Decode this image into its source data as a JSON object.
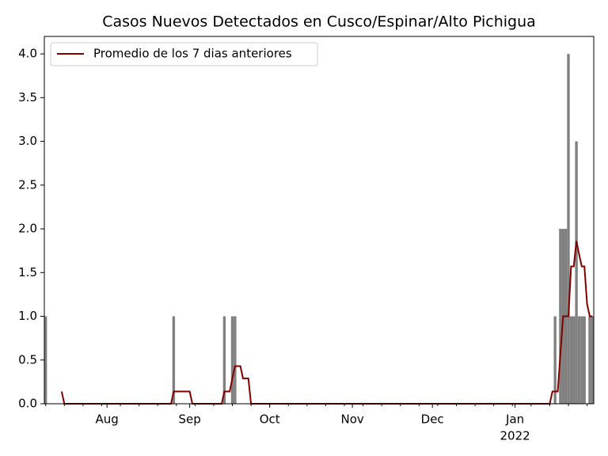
{
  "chart_data": {
    "type": "bar",
    "title": "Casos Nuevos Detectados en Cusco/Espinar/Alto Pichigua",
    "categories": [
      null,
      null,
      null,
      null,
      null,
      null,
      null,
      null,
      null,
      null,
      null,
      null,
      null,
      null,
      null,
      null,
      null,
      null,
      null,
      null,
      null,
      null,
      null,
      "Aug",
      null,
      null,
      null,
      null,
      null,
      null,
      null,
      null,
      null,
      null,
      null,
      null,
      null,
      null,
      null,
      null,
      null,
      null,
      null,
      null,
      null,
      null,
      null,
      null,
      null,
      null,
      null,
      null,
      null,
      null,
      "Sep",
      null,
      null,
      null,
      null,
      null,
      null,
      null,
      null,
      null,
      null,
      null,
      null,
      null,
      null,
      null,
      null,
      null,
      null,
      null,
      null,
      null,
      null,
      null,
      null,
      null,
      null,
      null,
      null,
      null,
      "Oct",
      null,
      null,
      null,
      null,
      null,
      null,
      null,
      null,
      null,
      null,
      null,
      null,
      null,
      null,
      null,
      null,
      null,
      null,
      null,
      null,
      null,
      null,
      null,
      null,
      null,
      null,
      null,
      null,
      null,
      null,
      "Nov",
      null,
      null,
      null,
      null,
      null,
      null,
      null,
      null,
      null,
      null,
      null,
      null,
      null,
      null,
      null,
      null,
      null,
      null,
      null,
      null,
      null,
      null,
      null,
      null,
      null,
      null,
      null,
      null,
      null,
      "Dec",
      null,
      null,
      null,
      null,
      null,
      null,
      null,
      null,
      null,
      null,
      null,
      null,
      null,
      null,
      null,
      null,
      null,
      null,
      null,
      null,
      null,
      null,
      null,
      null,
      null,
      null,
      null,
      null,
      null,
      null,
      "Jan",
      null,
      null,
      null,
      null,
      null,
      null,
      null,
      null,
      null,
      null,
      null,
      null,
      null,
      null,
      null,
      null,
      null,
      null,
      null,
      null,
      null,
      null,
      null,
      null,
      null,
      null,
      null,
      null,
      null
    ],
    "x_year_label": "2022",
    "series": [
      {
        "type": "bar",
        "color": "#808080",
        "values": [
          1,
          0,
          0,
          0,
          0,
          0,
          0,
          0,
          0,
          0,
          0,
          0,
          0,
          0,
          0,
          0,
          0,
          0,
          0,
          0,
          0,
          0,
          0,
          0,
          0,
          0,
          0,
          0,
          0,
          0,
          0,
          0,
          0,
          0,
          0,
          0,
          0,
          0,
          0,
          0,
          0,
          0,
          0,
          0,
          0,
          0,
          0,
          0,
          1,
          0,
          0,
          0,
          0,
          0,
          0,
          0,
          0,
          0,
          0,
          0,
          0,
          0,
          0,
          0,
          0,
          0,
          0,
          1,
          0,
          0,
          1,
          1,
          0,
          0,
          0,
          0,
          0,
          0,
          0,
          0,
          0,
          0,
          0,
          0,
          0,
          0,
          0,
          0,
          0,
          0,
          0,
          0,
          0,
          0,
          0,
          0,
          0,
          0,
          0,
          0,
          0,
          0,
          0,
          0,
          0,
          0,
          0,
          0,
          0,
          0,
          0,
          0,
          0,
          0,
          0,
          0,
          0,
          0,
          0,
          0,
          0,
          0,
          0,
          0,
          0,
          0,
          0,
          0,
          0,
          0,
          0,
          0,
          0,
          0,
          0,
          0,
          0,
          0,
          0,
          0,
          0,
          0,
          0,
          0,
          0,
          0,
          0,
          0,
          0,
          0,
          0,
          0,
          0,
          0,
          0,
          0,
          0,
          0,
          0,
          0,
          0,
          0,
          0,
          0,
          0,
          0,
          0,
          0,
          0,
          0,
          0,
          0,
          0,
          0,
          0,
          0,
          0,
          0,
          0,
          0,
          0,
          0,
          0,
          0,
          0,
          0,
          0,
          0,
          0,
          0,
          0,
          1,
          0,
          2,
          2,
          2,
          4,
          1,
          1,
          3,
          1,
          1,
          1,
          0,
          1,
          1
        ]
      },
      {
        "type": "line",
        "name": "Promedio de los 7 dias anteriores",
        "color": "#800000",
        "values": [
          null,
          null,
          null,
          null,
          null,
          null,
          0.14,
          0,
          0,
          0,
          0,
          0,
          0,
          0,
          0,
          0,
          0,
          0,
          0,
          0,
          0,
          0,
          0,
          0,
          0,
          0,
          0,
          0,
          0,
          0,
          0,
          0,
          0,
          0,
          0,
          0,
          0,
          0,
          0,
          0,
          0,
          0,
          0,
          0,
          0,
          0,
          0,
          0,
          0.14,
          0.14,
          0.14,
          0.14,
          0.14,
          0.14,
          0.14,
          0,
          0,
          0,
          0,
          0,
          0,
          0,
          0,
          0,
          0,
          0,
          0,
          0.14,
          0.14,
          0.14,
          0.29,
          0.43,
          0.43,
          0.43,
          0.29,
          0.29,
          0.29,
          0,
          0,
          0,
          0,
          0,
          0,
          0,
          0,
          0,
          0,
          0,
          0,
          0,
          0,
          0,
          0,
          0,
          0,
          0,
          0,
          0,
          0,
          0,
          0,
          0,
          0,
          0,
          0,
          0,
          0,
          0,
          0,
          0,
          0,
          0,
          0,
          0,
          0,
          0,
          0,
          0,
          0,
          0,
          0,
          0,
          0,
          0,
          0,
          0,
          0,
          0,
          0,
          0,
          0,
          0,
          0,
          0,
          0,
          0,
          0,
          0,
          0,
          0,
          0,
          0,
          0,
          0,
          0,
          0,
          0,
          0,
          0,
          0,
          0,
          0,
          0,
          0,
          0,
          0,
          0,
          0,
          0,
          0,
          0,
          0,
          0,
          0,
          0,
          0,
          0,
          0,
          0,
          0,
          0,
          0,
          0,
          0,
          0,
          0,
          0,
          0,
          0,
          0,
          0,
          0,
          0,
          0,
          0,
          0,
          0,
          0,
          0,
          0,
          0.14,
          0.14,
          0.14,
          0.57,
          1.0,
          1.0,
          1.0,
          1.57,
          1.57,
          1.86,
          1.71,
          1.57,
          1.57,
          1.14,
          1.0,
          1.0
        ]
      }
    ],
    "ylim": [
      0,
      4.2
    ],
    "yticks": [
      {
        "value": 0,
        "label": "0.0"
      },
      0.5,
      {
        "value": 1,
        "label": "1.0"
      },
      1.5,
      {
        "value": 2,
        "label": "2.0"
      },
      2.5,
      {
        "value": 3,
        "label": "3.0"
      },
      3.5,
      {
        "value": 4,
        "label": "4.0"
      }
    ],
    "legend": "upper left"
  }
}
